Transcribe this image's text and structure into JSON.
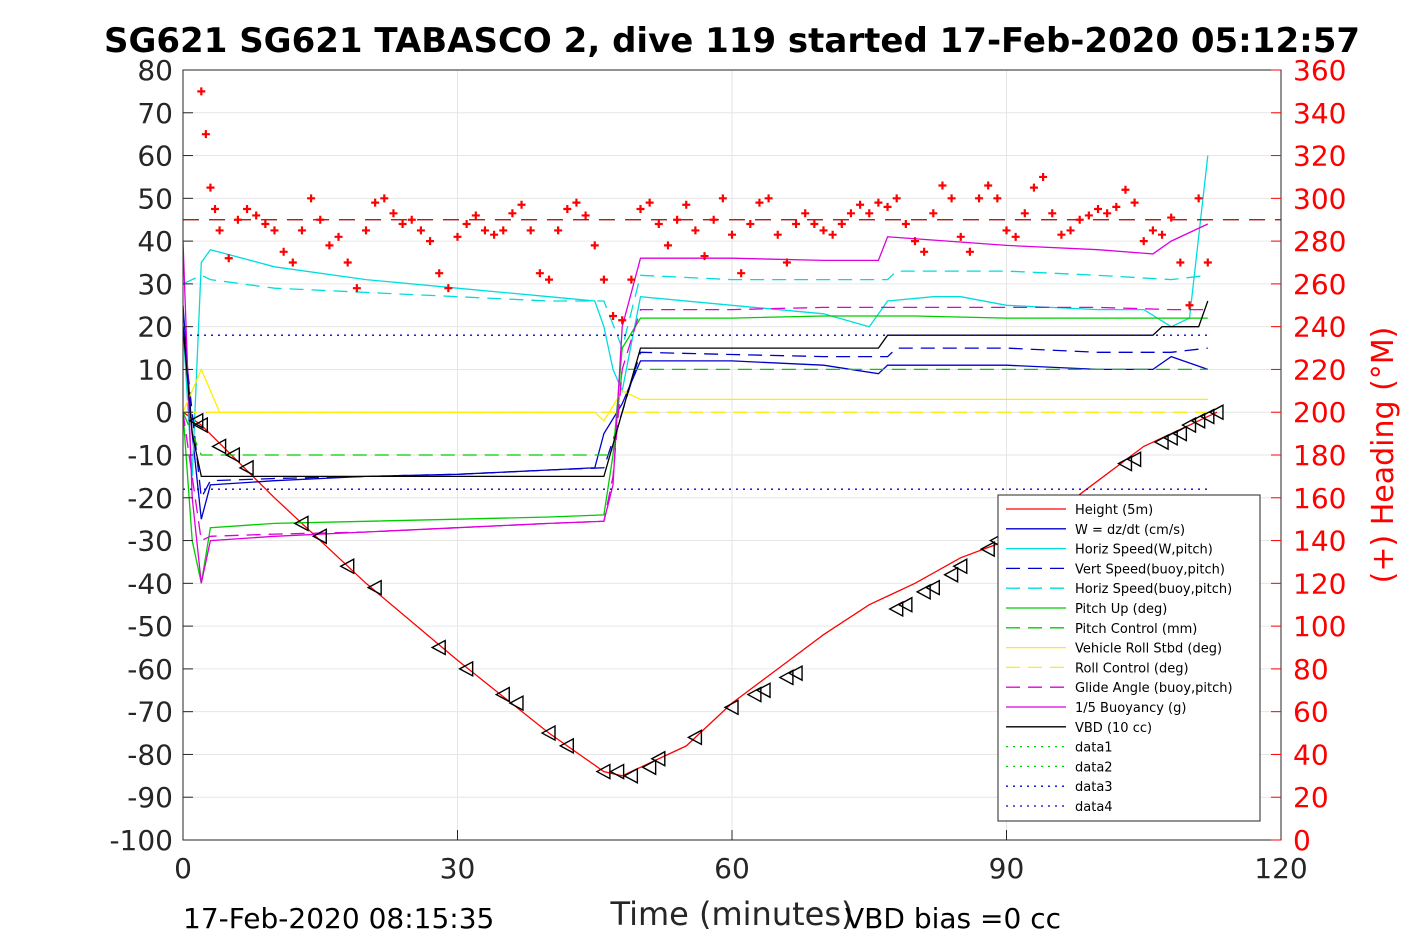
{
  "chart_data": {
    "type": "line",
    "title": "SG621 SG621 TABASCO 2, dive 119 started 17-Feb-2020 05:12:57",
    "xlabel": "Time (minutes)",
    "ylabel": "",
    "y2label": "(+) Heading (°M)",
    "xlim": [
      0,
      120
    ],
    "ylim": [
      -100,
      80
    ],
    "y2lim": [
      0,
      360
    ],
    "xticks": [
      0,
      30,
      60,
      90,
      120
    ],
    "yticks": [
      80,
      70,
      60,
      50,
      40,
      30,
      20,
      10,
      0,
      -10,
      -20,
      -30,
      -40,
      -50,
      -60,
      -70,
      -80,
      -90,
      -100
    ],
    "y2ticks": [
      360,
      340,
      320,
      300,
      280,
      260,
      240,
      220,
      200,
      180,
      160,
      140,
      120,
      100,
      80,
      60,
      40,
      20,
      0
    ],
    "grid": true,
    "legend_position": "bottom-right",
    "footer_left": "17-Feb-2020 08:15:35",
    "footer_right": "VBD bias =0 cc",
    "heading_reference": 290,
    "series": [
      {
        "name": "Height (5m)",
        "color": "#ff0000",
        "style": "solid",
        "x": [
          0,
          2,
          10,
          20,
          30,
          40,
          46,
          48,
          50,
          55,
          60,
          65,
          70,
          75,
          80,
          85,
          90,
          95,
          100,
          105,
          110,
          113
        ],
        "y": [
          0,
          -3,
          -20,
          -40,
          -58,
          -75,
          -84,
          -85,
          -83,
          -78,
          -68,
          -60,
          -52,
          -45,
          -40,
          -34,
          -30,
          -24,
          -16,
          -8,
          -3,
          0
        ]
      },
      {
        "name": "W = dz/dt (cm/s)",
        "color": "#0000cc",
        "style": "solid",
        "x": [
          0,
          1,
          2,
          3,
          10,
          20,
          30,
          40,
          45,
          46,
          48,
          50,
          60,
          70,
          76,
          77,
          90,
          100,
          106,
          108,
          112
        ],
        "y": [
          25,
          -5,
          -25,
          -17,
          -16,
          -15,
          -14.5,
          -13.5,
          -13,
          -5,
          2,
          12,
          12,
          11,
          9,
          11,
          11,
          10,
          10,
          13,
          10
        ]
      },
      {
        "name": "Horiz Speed(W,pitch)",
        "color": "#00dddd",
        "style": "solid",
        "x": [
          0,
          1,
          2,
          3,
          10,
          20,
          30,
          40,
          45,
          46,
          47,
          48,
          50,
          60,
          70,
          75,
          77,
          82,
          85,
          90,
          100,
          105,
          108,
          110,
          112
        ],
        "y": [
          20,
          -15,
          35,
          38,
          34,
          31,
          29,
          27,
          26,
          20,
          10,
          5,
          27,
          25,
          23,
          20,
          26,
          27,
          27,
          25,
          24,
          24,
          20,
          22,
          60
        ]
      },
      {
        "name": "Vert Speed(buoy,pitch)",
        "color": "#0000cc",
        "style": "dashed",
        "x": [
          0,
          2,
          3,
          10,
          20,
          30,
          40,
          46,
          48,
          50,
          60,
          70,
          77,
          78,
          90,
          100,
          108,
          112
        ],
        "y": [
          20,
          -20,
          -16,
          -15.5,
          -15,
          -14.5,
          -13.5,
          -13,
          0,
          14,
          13.5,
          13,
          13,
          15,
          15,
          14,
          14,
          15
        ]
      },
      {
        "name": "Horiz Speed(buoy,pitch)",
        "color": "#00dddd",
        "style": "dashed",
        "x": [
          0,
          2,
          3,
          10,
          20,
          30,
          40,
          46,
          48,
          50,
          60,
          70,
          77,
          78,
          90,
          100,
          108,
          112
        ],
        "y": [
          30,
          32,
          31,
          29,
          28,
          27,
          26,
          26,
          15,
          32,
          31,
          31,
          31,
          33,
          33,
          32,
          31,
          32
        ]
      },
      {
        "name": "Pitch Up (deg)",
        "color": "#00cc00",
        "style": "solid",
        "x": [
          0,
          1,
          2,
          3,
          10,
          20,
          30,
          40,
          46,
          47,
          48,
          50,
          60,
          70,
          80,
          90,
          100,
          108,
          112
        ],
        "y": [
          0,
          -30,
          -40,
          -27,
          -26,
          -25.5,
          -25,
          -24.5,
          -24,
          -10,
          15,
          22,
          22,
          22.5,
          22.5,
          22,
          22,
          22,
          22
        ]
      },
      {
        "name": "Pitch Control (mm)",
        "color": "#00cc00",
        "style": "dashed",
        "x": [
          0,
          2,
          3,
          46,
          47,
          48,
          50,
          112
        ],
        "y": [
          0,
          -10,
          -10,
          -10,
          -10,
          10,
          10,
          10
        ]
      },
      {
        "name": "Vehicle Roll Stbd (deg)",
        "color": "#ffee00",
        "style": "solid",
        "x": [
          0,
          2,
          3,
          4,
          10,
          20,
          30,
          40,
          45,
          46,
          48,
          50,
          60,
          70,
          80,
          90,
          100,
          108,
          112
        ],
        "y": [
          0,
          10,
          5,
          0,
          0,
          0,
          0,
          0,
          0,
          -2,
          5,
          3,
          3,
          3,
          3,
          3,
          3,
          3,
          3
        ]
      },
      {
        "name": "Roll Control (deg)",
        "color": "#ffee00",
        "style": "dashed",
        "x": [
          0,
          2,
          3,
          46,
          48,
          112
        ],
        "y": [
          0,
          0,
          0,
          0,
          0,
          0
        ]
      },
      {
        "name": "Glide Angle (buoy,pitch)",
        "color": "#dd00dd",
        "style": "dashed",
        "x": [
          0,
          2,
          3,
          10,
          20,
          30,
          40,
          46,
          47,
          48,
          50,
          60,
          70,
          80,
          90,
          100,
          108,
          112
        ],
        "y": [
          0,
          -30,
          -29,
          -28.5,
          -28,
          -27,
          -26,
          -25.5,
          -15,
          10,
          24,
          24,
          24.5,
          24.5,
          24.5,
          24.5,
          24,
          24
        ]
      },
      {
        "name": "1/5 Buoyancy (g)",
        "color": "#dd00dd",
        "style": "solid",
        "x": [
          0,
          1,
          2,
          3,
          10,
          20,
          30,
          40,
          46,
          47,
          48,
          50,
          60,
          70,
          76,
          77,
          90,
          100,
          106,
          108,
          112
        ],
        "y": [
          40,
          -20,
          -40,
          -30,
          -29,
          -28,
          -27,
          -26,
          -25.5,
          -17,
          20,
          36,
          36,
          35.5,
          35.5,
          41,
          39,
          38,
          37,
          40,
          44
        ]
      },
      {
        "name": "VBD (10 cc)",
        "color": "#000000",
        "style": "solid",
        "x": [
          0,
          1,
          2,
          10,
          20,
          30,
          40,
          46,
          48,
          50,
          60,
          70,
          76,
          77,
          90,
          100,
          106,
          107,
          111,
          112
        ],
        "y": [
          20,
          -5,
          -15,
          -15,
          -15,
          -15,
          -15,
          -15,
          0,
          15,
          15,
          15,
          15,
          18,
          18,
          18,
          18,
          20,
          20,
          26
        ]
      },
      {
        "name": "data1",
        "color": "#00cc00",
        "style": "dotted",
        "x": [],
        "y": []
      },
      {
        "name": "data2",
        "color": "#00cc00",
        "style": "dotted",
        "x": [],
        "y": []
      },
      {
        "name": "data3",
        "color": "#0000cc",
        "style": "dotted",
        "x": [
          0,
          112
        ],
        "y": [
          18,
          18
        ]
      },
      {
        "name": "data4",
        "color": "#0000cc",
        "style": "dotted",
        "x": [
          0,
          112
        ],
        "y": [
          -18,
          -18
        ]
      }
    ],
    "heading": {
      "name": "(+) Heading (°M)",
      "color": "#ff0000",
      "x": [
        2,
        2.5,
        3,
        3.5,
        4,
        5,
        6,
        7,
        8,
        9,
        10,
        11,
        12,
        13,
        14,
        15,
        16,
        17,
        18,
        19,
        20,
        21,
        22,
        23,
        24,
        25,
        26,
        27,
        28,
        29,
        30,
        31,
        32,
        33,
        34,
        35,
        36,
        37,
        38,
        39,
        40,
        41,
        42,
        43,
        44,
        45,
        46,
        47,
        48,
        49,
        50,
        51,
        52,
        53,
        54,
        55,
        56,
        57,
        58,
        59,
        60,
        61,
        62,
        63,
        64,
        65,
        66,
        67,
        68,
        69,
        70,
        71,
        72,
        73,
        74,
        75,
        76,
        77,
        78,
        79,
        80,
        81,
        82,
        83,
        84,
        85,
        86,
        87,
        88,
        89,
        90,
        91,
        92,
        93,
        94,
        95,
        96,
        97,
        98,
        99,
        100,
        101,
        102,
        103,
        104,
        105,
        106,
        107,
        108,
        109,
        110,
        111,
        112
      ],
      "y": [
        350,
        330,
        305,
        295,
        285,
        272,
        290,
        295,
        292,
        288,
        285,
        275,
        270,
        285,
        300,
        290,
        278,
        282,
        270,
        258,
        285,
        298,
        300,
        293,
        288,
        290,
        285,
        280,
        265,
        258,
        282,
        288,
        292,
        285,
        283,
        285,
        293,
        297,
        285,
        265,
        262,
        285,
        295,
        298,
        292,
        278,
        262,
        245,
        243,
        262,
        295,
        298,
        288,
        278,
        290,
        297,
        285,
        273,
        290,
        300,
        283,
        265,
        288,
        298,
        300,
        283,
        270,
        288,
        293,
        288,
        285,
        283,
        288,
        293,
        297,
        293,
        298,
        296,
        300,
        288,
        280,
        275,
        293,
        306,
        300,
        282,
        275,
        300,
        306,
        300,
        285,
        282,
        293,
        305,
        310,
        293,
        283,
        285,
        290,
        292,
        295,
        293,
        296,
        304,
        298,
        280,
        285,
        283,
        291,
        270,
        250,
        300,
        270
      ]
    },
    "markers": {
      "type": "triangle-left",
      "color": "#000000",
      "x": [
        1.5,
        2,
        4,
        5.5,
        7,
        13,
        15,
        18,
        21,
        28,
        31,
        35,
        36.5,
        40,
        42,
        46,
        47.5,
        49,
        51,
        52,
        56,
        60,
        62.5,
        63.5,
        66,
        67,
        78,
        79,
        81,
        82,
        84,
        85,
        88,
        89,
        103,
        104,
        107,
        108,
        109,
        110,
        111,
        112,
        113
      ],
      "y": [
        -2,
        -3,
        -8,
        -10,
        -13,
        -26,
        -29,
        -36,
        -41,
        -55,
        -60,
        -66,
        -68,
        -75,
        -78,
        -84,
        -84,
        -85,
        -83,
        -81,
        -76,
        -69,
        -66,
        -65,
        -62,
        -61,
        -46,
        -45,
        -42,
        -41,
        -38,
        -36,
        -32,
        -30,
        -12,
        -11,
        -7,
        -6,
        -5,
        -3,
        -2,
        -1,
        0
      ]
    }
  }
}
